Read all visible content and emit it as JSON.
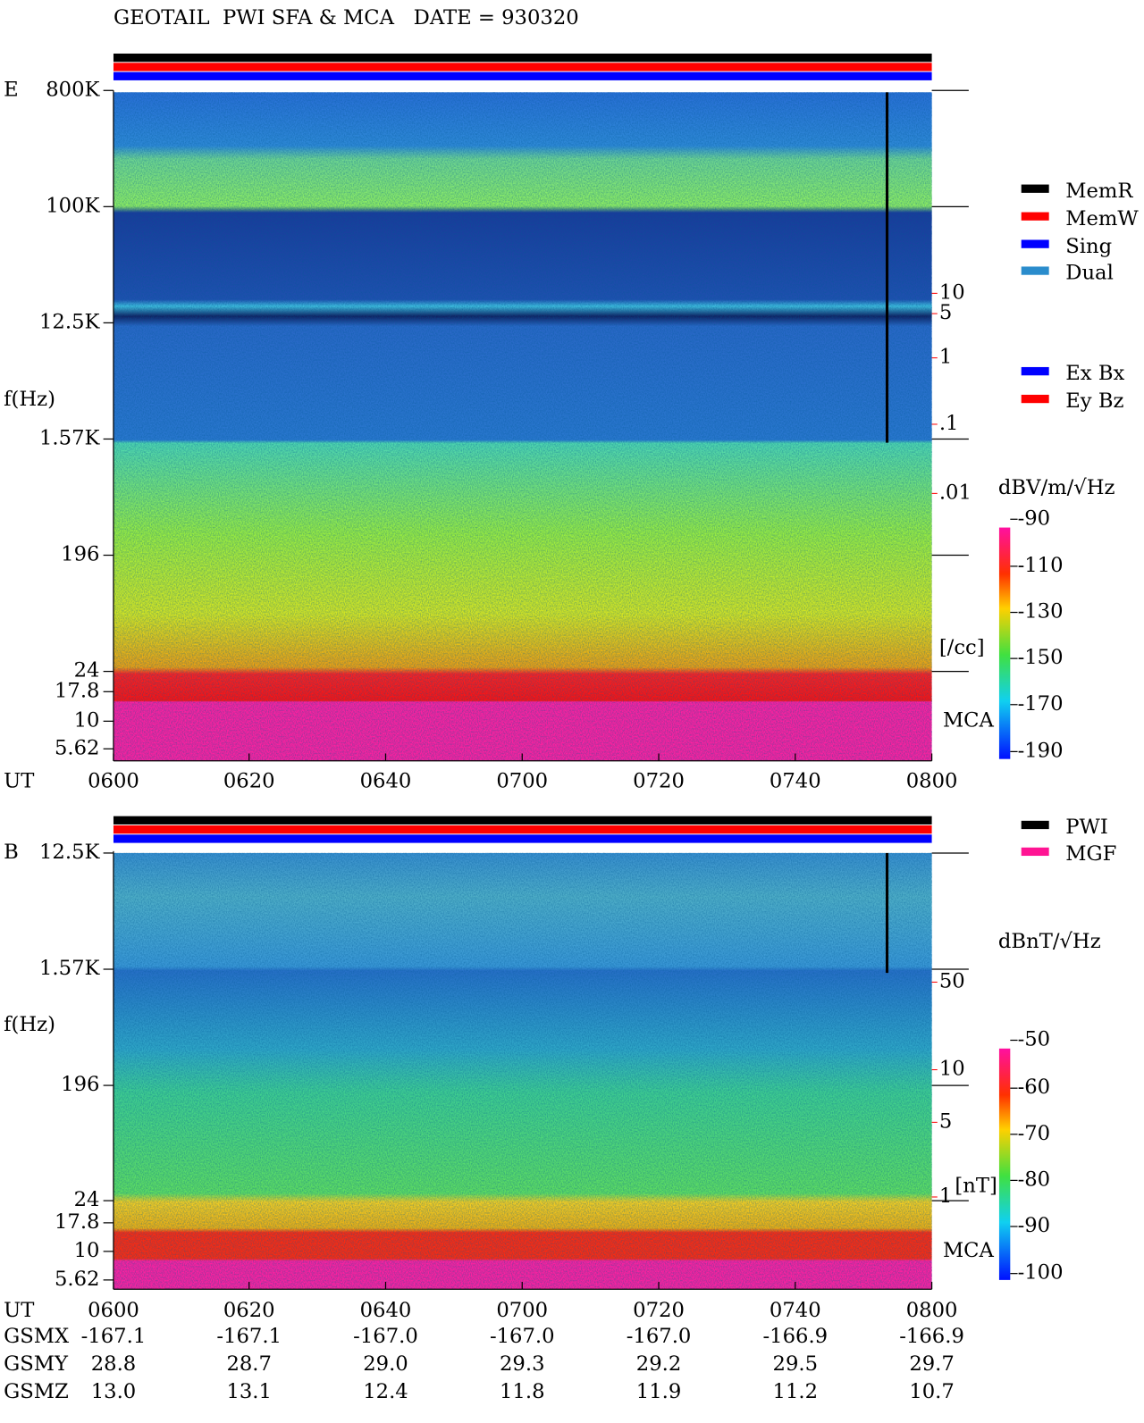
{
  "header": {
    "title": "GEOTAIL  PWI SFA & MCA   DATE = 930320"
  },
  "panels": [
    {
      "label": "E",
      "ylabel": "f(Hz)",
      "yticks": [
        "800K",
        "100K",
        "12.5K",
        "1.57K",
        "196",
        "24",
        "17.8",
        "10",
        "5.62"
      ],
      "right_scale": [
        "10",
        "5",
        "1",
        ".1",
        ".01"
      ],
      "right_unit": "[/cc]",
      "mca": "MCA",
      "unit": "dBV/m/√Hz",
      "colorbar_ticks": [
        "-90",
        "-110",
        "-130",
        "-150",
        "-170",
        "-190"
      ]
    },
    {
      "label": "B",
      "ylabel": "f(Hz)",
      "yticks": [
        "12.5K",
        "1.57K",
        "196",
        "24",
        "17.8",
        "10",
        "5.62"
      ],
      "right_scale": [
        "50",
        "10",
        "5",
        "1"
      ],
      "right_unit": "[nT]",
      "mca": "MCA",
      "unit": "dBnT/√Hz",
      "colorbar_ticks": [
        "-50",
        "-60",
        "-70",
        "-80",
        "-90",
        "-100"
      ]
    }
  ],
  "x_axis": {
    "label": "UT",
    "ticks": [
      "0600",
      "0620",
      "0640",
      "0700",
      "0720",
      "0740",
      "0800"
    ]
  },
  "legend_mode": [
    {
      "label": "MemR",
      "color": "#000000"
    },
    {
      "label": "MemW",
      "color": "#ff0000"
    },
    {
      "label": "Sing",
      "color": "#0000ff"
    },
    {
      "label": "Dual",
      "color": "#2a8ccc"
    }
  ],
  "legend_channel": [
    {
      "label": "Ex Bx",
      "color": "#0000ff"
    },
    {
      "label": "Ey Bz",
      "color": "#ff0000"
    }
  ],
  "legend_source": [
    {
      "label": "PWI",
      "color": "#000000"
    },
    {
      "label": "MGF",
      "color": "#ff1493"
    }
  ],
  "orbit": [
    {
      "label": "GSMX",
      "values": [
        "-167.1",
        "-167.1",
        "-167.0",
        "-167.0",
        "-167.0",
        "-166.9",
        "-166.9"
      ]
    },
    {
      "label": "GSMY",
      "values": [
        "28.8",
        "28.7",
        "29.0",
        "29.3",
        "29.2",
        "29.5",
        "29.7"
      ]
    },
    {
      "label": "GSMZ",
      "values": [
        "13.0",
        "13.1",
        "12.4",
        "11.8",
        "11.9",
        "11.2",
        "10.7"
      ]
    }
  ]
}
